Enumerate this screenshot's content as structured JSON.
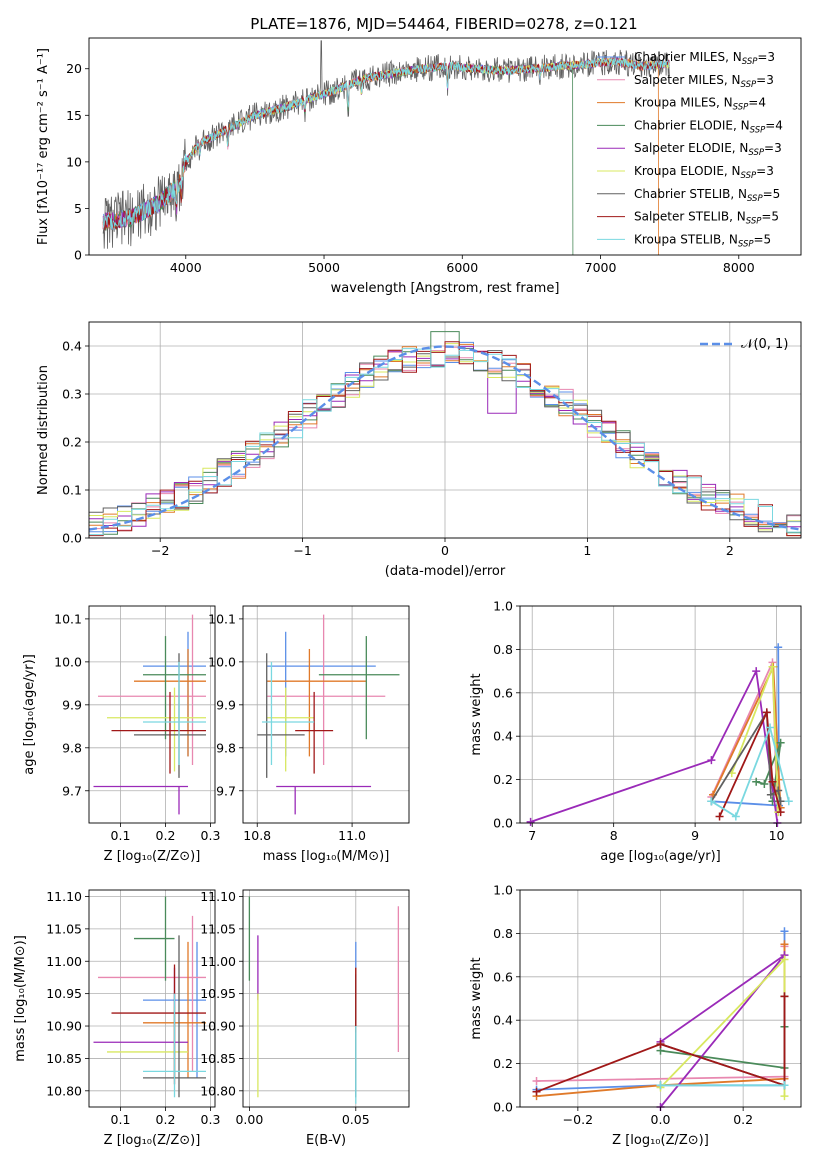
{
  "figure_title": "PLATE=1876, MJD=54464, FIBERID=0278, z=0.121",
  "series_colors": [
    "#5b8fe8",
    "#e888b0",
    "#e07a2a",
    "#4a8a5a",
    "#9a2ab8",
    "#d8e860",
    "#606060",
    "#a01818",
    "#7ad8e0"
  ],
  "chart_data": [
    {
      "type": "line",
      "id": "spectrum",
      "title": "PLATE=1876, MJD=54464, FIBERID=0278, z=0.121",
      "xlabel": "wavelength [Angstrom, rest frame]",
      "ylabel": "Flux [fλ10⁻¹⁷ erg cm⁻² s⁻¹ A⁻¹]",
      "xlim": [
        3300,
        8450
      ],
      "ylim": [
        0,
        23.3
      ],
      "xticks": [
        "4000",
        "5000",
        "6000",
        "7000",
        "8000"
      ],
      "yticks": [
        "0",
        "5",
        "10",
        "15",
        "20"
      ],
      "legend_position": "upper-right",
      "series": [
        {
          "name": "Chabrier MILES, N_SSP=3"
        },
        {
          "name": "Salpeter MILES, N_SSP=3"
        },
        {
          "name": "Kroupa MILES, N_SSP=4"
        },
        {
          "name": "Chabrier ELODIE, N_SSP=4"
        },
        {
          "name": "Salpeter ELODIE, N_SSP=3"
        },
        {
          "name": "Kroupa ELODIE, N_SSP=3"
        },
        {
          "name": "Chabrier STELIB, N_SSP=5"
        },
        {
          "name": "Salpeter STELIB, N_SSP=5"
        },
        {
          "name": "Kroupa STELIB, N_SSP=5"
        }
      ],
      "continuum": {
        "x": [
          3400,
          3600,
          3800,
          3950,
          4000,
          4100,
          4300,
          4500,
          4700,
          4900,
          5100,
          5300,
          5500,
          5700,
          5900,
          6100,
          6300,
          6500,
          6700,
          6900,
          7100,
          7300,
          7500
        ],
        "y": [
          3.5,
          4.0,
          5.5,
          7.5,
          10,
          12,
          13.5,
          15,
          15.8,
          16.8,
          17.8,
          19.0,
          19.5,
          20.0,
          20.3,
          20.0,
          19.8,
          20.0,
          20.3,
          20.5,
          20.8,
          20.3,
          20.5
        ]
      }
    },
    {
      "type": "step",
      "id": "residuals",
      "xlabel": "(data-model)/error",
      "ylabel": "Normed distribution",
      "xlim": [
        -2.5,
        2.5
      ],
      "ylim": [
        0,
        0.45
      ],
      "xticks": [
        "−2",
        "−1",
        "0",
        "1",
        "2"
      ],
      "yticks": [
        "0.0",
        "0.1",
        "0.2",
        "0.3",
        "0.4"
      ],
      "legend": "𝒩(0, 1)",
      "legend_position": "upper-right",
      "grid": true
    },
    {
      "type": "errorbar",
      "id": "age-vs-Z",
      "xlabel": "Z [log₁₀(Z/Z⊙)]",
      "ylabel": "age  [log₁₀(age/yr)]",
      "xlim": [
        0.03,
        0.31
      ],
      "ylim": [
        9.625,
        10.13
      ],
      "xticks": [
        "0.1",
        "0.2",
        "0.3"
      ],
      "yticks": [
        "9.7",
        "9.8",
        "9.9",
        "10.0",
        "10.1"
      ],
      "grid": true,
      "points": [
        {
          "x": 0.25,
          "xerr": [
            0.15,
            0.29
          ],
          "y": 9.99,
          "yerr": [
            9.78,
            10.07
          ]
        },
        {
          "x": 0.26,
          "xerr": [
            0.05,
            0.29
          ],
          "y": 9.92,
          "yerr": [
            9.76,
            10.11
          ]
        },
        {
          "x": 0.25,
          "xerr": [
            0.13,
            0.29
          ],
          "y": 9.955,
          "yerr": [
            9.78,
            10.03
          ]
        },
        {
          "x": 0.2,
          "xerr": [
            0.15,
            0.29
          ],
          "y": 9.97,
          "yerr": [
            9.82,
            10.06
          ]
        },
        {
          "x": 0.23,
          "xerr": [
            0.04,
            0.25
          ],
          "y": 9.71,
          "yerr": [
            9.645,
            9.71
          ]
        },
        {
          "x": 0.22,
          "xerr": [
            0.07,
            0.29
          ],
          "y": 9.87,
          "yerr": [
            9.745,
            9.94
          ]
        },
        {
          "x": 0.23,
          "xerr": [
            0.13,
            0.29
          ],
          "y": 9.83,
          "yerr": [
            9.73,
            10.02
          ]
        },
        {
          "x": 0.21,
          "xerr": [
            0.08,
            0.29
          ],
          "y": 9.84,
          "yerr": [
            9.74,
            9.93
          ]
        },
        {
          "x": 0.23,
          "xerr": [
            0.15,
            0.29
          ],
          "y": 9.86,
          "yerr": [
            9.76,
            10.0
          ]
        }
      ]
    },
    {
      "type": "errorbar",
      "id": "age-vs-mass",
      "xlabel": "mass [log₁₀(M/M⊙)]",
      "ylabel": "",
      "xlim": [
        10.77,
        11.12
      ],
      "ylim": [
        9.625,
        10.13
      ],
      "xticks": [
        "10.8",
        "11.0"
      ],
      "yticks": [
        "9.7",
        "9.8",
        "9.9",
        "10.0",
        "10.1"
      ],
      "grid": true,
      "points": [
        {
          "x": 10.86,
          "xerr": [
            10.82,
            11.05
          ],
          "y": 9.99,
          "yerr": [
            9.78,
            10.07
          ]
        },
        {
          "x": 10.94,
          "xerr": [
            10.82,
            11.07
          ],
          "y": 9.92,
          "yerr": [
            9.76,
            10.11
          ]
        },
        {
          "x": 10.91,
          "xerr": [
            10.82,
            11.03
          ],
          "y": 9.955,
          "yerr": [
            9.78,
            10.03
          ]
        },
        {
          "x": 11.03,
          "xerr": [
            10.93,
            11.1
          ],
          "y": 9.97,
          "yerr": [
            9.82,
            10.06
          ]
        },
        {
          "x": 10.88,
          "xerr": [
            10.84,
            11.04
          ],
          "y": 9.71,
          "yerr": [
            9.645,
            9.71
          ]
        },
        {
          "x": 10.86,
          "xerr": [
            10.82,
            10.92
          ],
          "y": 9.87,
          "yerr": [
            9.745,
            9.94
          ]
        },
        {
          "x": 10.82,
          "xerr": [
            10.8,
            10.9
          ],
          "y": 9.83,
          "yerr": [
            9.73,
            10.02
          ]
        },
        {
          "x": 10.92,
          "xerr": [
            10.88,
            10.96
          ],
          "y": 9.84,
          "yerr": [
            9.74,
            9.93
          ]
        },
        {
          "x": 10.83,
          "xerr": [
            10.81,
            10.92
          ],
          "y": 9.86,
          "yerr": [
            9.76,
            10.0
          ]
        }
      ]
    },
    {
      "type": "line",
      "id": "weight-vs-age",
      "xlabel": "age  [log₁₀(age/yr)]",
      "ylabel": "mass weight",
      "xlim": [
        6.85,
        10.3
      ],
      "ylim": [
        0,
        1.0
      ],
      "xticks": [
        "7",
        "8",
        "9",
        "10"
      ],
      "yticks": [
        "0.0",
        "0.2",
        "0.4",
        "0.6",
        "0.8",
        "1.0"
      ],
      "grid": true,
      "series": [
        {
          "x": [
            9.2,
            10.03,
            10.02
          ],
          "y": [
            0.1,
            0.08,
            0.81
          ]
        },
        {
          "x": [
            9.2,
            9.95,
            10.0
          ],
          "y": [
            0.12,
            0.74,
            0.14
          ]
        },
        {
          "x": [
            9.22,
            9.96,
            10.03,
            10.05
          ],
          "y": [
            0.13,
            0.72,
            0.2,
            0.07
          ]
        },
        {
          "x": [
            9.75,
            9.85,
            10.05,
            9.95
          ],
          "y": [
            0.19,
            0.18,
            0.37,
            0.1
          ]
        },
        {
          "x": [
            6.98,
            9.2,
            9.75,
            10.01
          ],
          "y": [
            0.005,
            0.29,
            0.7,
            0.0
          ]
        },
        {
          "x": [
            9.45,
            9.95,
            10.02
          ],
          "y": [
            0.23,
            0.72,
            0.05
          ]
        },
        {
          "x": [
            9.2,
            9.88,
            9.93,
            10.02,
            10.05
          ],
          "y": [
            0.1,
            0.51,
            0.13,
            0.15,
            0.1
          ]
        },
        {
          "x": [
            9.3,
            9.88,
            9.95,
            10.05
          ],
          "y": [
            0.03,
            0.51,
            0.19,
            0.05
          ]
        },
        {
          "x": [
            9.2,
            9.5,
            9.92,
            10.15
          ],
          "y": [
            0.1,
            0.03,
            0.44,
            0.1
          ]
        }
      ]
    },
    {
      "type": "errorbar",
      "id": "mass-vs-Z",
      "xlabel": "Z [log₁₀(Z/Z⊙)]",
      "ylabel": "mass [log₁₀(M/M⊙)]",
      "xlim": [
        0.03,
        0.31
      ],
      "ylim": [
        10.775,
        11.11
      ],
      "xticks": [
        "0.1",
        "0.2",
        "0.3"
      ],
      "yticks": [
        "10.80",
        "10.85",
        "10.90",
        "10.95",
        "11.00",
        "11.05",
        "11.10"
      ],
      "grid": true,
      "points": [
        {
          "x": 0.27,
          "xerr": [
            0.15,
            0.29
          ],
          "y": 10.94,
          "yerr": [
            10.82,
            11.03
          ]
        },
        {
          "x": 0.26,
          "xerr": [
            0.05,
            0.29
          ],
          "y": 10.975,
          "yerr": [
            10.83,
            11.07
          ]
        },
        {
          "x": 0.25,
          "xerr": [
            0.15,
            0.29
          ],
          "y": 10.905,
          "yerr": [
            10.82,
            11.03
          ]
        },
        {
          "x": 0.2,
          "xerr": [
            0.13,
            0.22
          ],
          "y": 11.035,
          "yerr": [
            10.97,
            11.1
          ]
        },
        {
          "x": 0.22,
          "xerr": [
            0.04,
            0.25
          ],
          "y": 10.875,
          "yerr": [
            10.82,
            10.99
          ]
        },
        {
          "x": 0.22,
          "xerr": [
            0.07,
            0.25
          ],
          "y": 10.86,
          "yerr": [
            10.82,
            10.93
          ]
        },
        {
          "x": 0.23,
          "xerr": [
            0.15,
            0.29
          ],
          "y": 10.82,
          "yerr": [
            10.79,
            11.04
          ]
        },
        {
          "x": 0.22,
          "xerr": [
            0.08,
            0.29
          ],
          "y": 10.92,
          "yerr": [
            10.81,
            10.995
          ]
        },
        {
          "x": 0.22,
          "xerr": [
            0.15,
            0.29
          ],
          "y": 10.83,
          "yerr": [
            10.79,
            10.95
          ]
        }
      ]
    },
    {
      "type": "errorbar",
      "id": "mass-vs-ebv",
      "xlabel": "E(B-V)",
      "ylabel": "",
      "xlim": [
        -0.003,
        0.075
      ],
      "ylim": [
        10.775,
        11.11
      ],
      "xticks": [
        "0.00",
        "0.05"
      ],
      "yticks": [
        "10.80",
        "10.85",
        "10.90",
        "10.95",
        "11.00",
        "11.05",
        "11.10"
      ],
      "grid": true,
      "points": [
        {
          "x": 0.05,
          "xerr": [
            0.05,
            0.05
          ],
          "y": 10.94,
          "yerr": [
            10.79,
            11.03
          ]
        },
        {
          "x": 0.07,
          "xerr": [
            0.07,
            0.07
          ],
          "y": 10.975,
          "yerr": [
            10.86,
            11.085
          ]
        },
        {
          "x": 0.05,
          "xerr": [
            0.05,
            0.05
          ],
          "y": 10.905,
          "yerr": [
            10.82,
            10.99
          ]
        },
        {
          "x": 0.0,
          "xerr": [
            0.0,
            0.0
          ],
          "y": 11.035,
          "yerr": [
            10.97,
            11.1
          ]
        },
        {
          "x": 0.004,
          "xerr": [
            0.004,
            0.004
          ],
          "y": 10.99,
          "yerr": [
            10.94,
            11.04
          ]
        },
        {
          "x": 0.004,
          "xerr": [
            0.004,
            0.004
          ],
          "y": 10.86,
          "yerr": [
            10.79,
            10.95
          ]
        },
        {
          "x": 0.05,
          "xerr": [
            0.05,
            0.05
          ],
          "y": 10.82,
          "yerr": [
            10.79,
            10.98
          ]
        },
        {
          "x": 0.05,
          "xerr": [
            0.05,
            0.05
          ],
          "y": 10.92,
          "yerr": [
            10.89,
            10.99
          ]
        },
        {
          "x": 0.05,
          "xerr": [
            0.05,
            0.05
          ],
          "y": 10.83,
          "yerr": [
            10.78,
            10.9
          ]
        }
      ]
    },
    {
      "type": "line",
      "id": "weight-vs-Z",
      "xlabel": "Z [log₁₀(Z/Z⊙)]",
      "ylabel": "mass weight",
      "xlim": [
        -0.34,
        0.34
      ],
      "ylim": [
        0,
        1.0
      ],
      "xticks": [
        "−0.2",
        "0.0",
        "0.2"
      ],
      "yticks": [
        "0.0",
        "0.2",
        "0.4",
        "0.6",
        "0.8",
        "1.0"
      ],
      "grid": true,
      "series": [
        {
          "x": [
            -0.3,
            0.0,
            0.3,
            0.3
          ],
          "y": [
            0.08,
            0.1,
            0.1,
            0.81
          ]
        },
        {
          "x": [
            -0.3,
            0.3,
            0.3
          ],
          "y": [
            0.12,
            0.14,
            0.74
          ]
        },
        {
          "x": [
            -0.3,
            0.0,
            0.3,
            0.3
          ],
          "y": [
            0.05,
            0.1,
            0.13,
            0.75
          ]
        },
        {
          "x": [
            0.0,
            0.3,
            0.3
          ],
          "y": [
            0.26,
            0.18,
            0.37
          ]
        },
        {
          "x": [
            0.0,
            0.3,
            0.0
          ],
          "y": [
            0.0,
            0.7,
            0.3
          ]
        },
        {
          "x": [
            0.0,
            0.3,
            0.3
          ],
          "y": [
            0.09,
            0.68,
            0.05
          ]
        },
        {
          "x": [
            0.0,
            0.3,
            0.3
          ],
          "y": [
            0.29,
            0.1,
            0.51
          ]
        },
        {
          "x": [
            -0.3,
            0.0,
            0.3,
            0.3
          ],
          "y": [
            0.07,
            0.29,
            0.1,
            0.51
          ]
        },
        {
          "x": [
            0.0,
            0.3,
            0.3
          ],
          "y": [
            0.1,
            0.1,
            0.1
          ]
        }
      ]
    }
  ]
}
